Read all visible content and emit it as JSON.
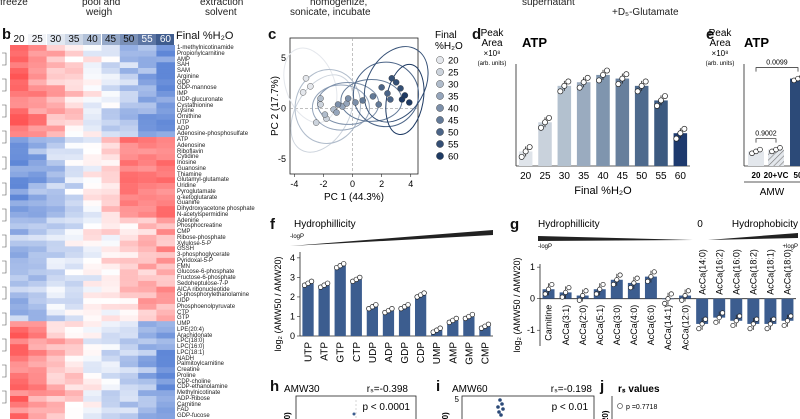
{
  "header_fragments": {
    "freeze": "freeze",
    "pool_weigh": "pool and",
    "weigh": "weigh",
    "extraction": "extraction",
    "solvent": "solvent",
    "homogenize": "homogenize,",
    "sonicate": "sonicate, incubate",
    "supernatant": "supernatant",
    "glutamate": "+D₅-Glutamate"
  },
  "panel_letters": {
    "b": "b",
    "c": "c",
    "d": "d",
    "e": "e",
    "f": "f",
    "g": "g",
    "h": "h",
    "i": "i",
    "j": "j"
  },
  "panel_b": {
    "col_labels": [
      "20",
      "25",
      "30",
      "35",
      "40",
      "45",
      "50",
      "55",
      "60"
    ],
    "final_label": "Final %H₂O",
    "row_labels": [
      "1-methylnicotinamide",
      "Propionylcarnitine",
      "AMP",
      "SAH",
      "SAM",
      "Arginine",
      "GDP",
      "GDP-mannose",
      "IMP",
      "UDP-glucuronate",
      "Cystathionine",
      "Lysine",
      "Ornithine",
      "UTP",
      "ADP",
      "Adenosine-phosphosulfate",
      "ATP",
      "Adenosine",
      "Riboflavin",
      "Cytidine",
      "Inosine",
      "Guanosine",
      "Thiamine",
      "Glutamyl-glutamate",
      "Uridine",
      "Pyroglutamate",
      "α-ketoglutarate",
      "Guanine",
      "Dihydroxyacetone phosphate",
      "N-acetylspermidine",
      "Adenine",
      "Phosphocreatine",
      "CMP",
      "Ribose-phosphate",
      "Xylulose-5-P",
      "GSSH",
      "3-phosphoglycerate",
      "Pyridoxal-5-P",
      "FMN",
      "Glucose-6-phosphate",
      "Fructose-6-phosphate",
      "Sedoheptulose-7-P",
      "AICA ribonucleotide",
      "O-phosphorylethanolamine",
      "UDP",
      "Phosphoenolpyruvate",
      "CTP",
      "GTP",
      "UMP",
      "LPE(20:4)",
      "Arachidonate",
      "LPC(18:0)",
      "LPC(16:0)",
      "LPC(18:1)",
      "NADH",
      "Palmitoylcarnitine",
      "Creatine",
      "Proline",
      "CDP-choline",
      "CDP-ethanolamine",
      "Methylnicotinate",
      "ADP-Ribose",
      "Carnitine",
      "FAD",
      "GDP-fucose"
    ]
  },
  "panel_c": {
    "xlabel": "PC 1 (44.3%)",
    "ylabel": "PC 2 (17.7%)",
    "xticks": [
      "-4",
      "-2",
      "0",
      "2",
      "4"
    ],
    "yticks": [
      "5",
      "0",
      "-5"
    ],
    "legend_title_1": "Final",
    "legend_title_2": "%H₂O",
    "legend": [
      "20",
      "25",
      "30",
      "35",
      "40",
      "45",
      "50",
      "55",
      "60"
    ],
    "points": [
      [
        -3.2,
        3.0,
        0
      ],
      [
        -3.4,
        1.6,
        0
      ],
      [
        -2.9,
        2.2,
        0
      ],
      [
        -2.5,
        -1.4,
        1
      ],
      [
        -2.2,
        0.4,
        1
      ],
      [
        -1.8,
        -1.0,
        1
      ],
      [
        -2.2,
        1.0,
        2
      ],
      [
        -1.9,
        -0.6,
        2
      ],
      [
        -1.3,
        -0.1,
        2
      ],
      [
        -1.1,
        -0.4,
        3
      ],
      [
        -0.7,
        0.2,
        3
      ],
      [
        -0.4,
        0.5,
        3
      ],
      [
        -1.0,
        0.4,
        4
      ],
      [
        -0.3,
        1.0,
        4
      ],
      [
        0.2,
        0.6,
        4
      ],
      [
        0.7,
        0.8,
        5
      ],
      [
        1.4,
        1.2,
        5
      ],
      [
        1.8,
        0.4,
        5
      ],
      [
        2.0,
        2.1,
        6
      ],
      [
        2.4,
        1.5,
        6
      ],
      [
        2.6,
        0.9,
        6
      ],
      [
        2.7,
        3.0,
        7
      ],
      [
        3.0,
        2.6,
        7
      ],
      [
        3.3,
        2.0,
        7
      ],
      [
        3.4,
        0.9,
        8
      ],
      [
        3.6,
        1.3,
        8
      ],
      [
        3.9,
        0.6,
        8
      ]
    ]
  },
  "panel_d": {
    "title": "ATP",
    "ylabel_1": "Peak",
    "ylabel_2": "Area",
    "ylabel_3": "×10⁸",
    "ylabel_4": "(arb. units)",
    "xlabel": "Final %H₂O",
    "categories": [
      "20",
      "25",
      "30",
      "35",
      "40",
      "45",
      "50",
      "55",
      "60"
    ],
    "values": [
      0.4,
      1.2,
      2.2,
      2.3,
      2.5,
      2.4,
      2.2,
      1.8,
      0.9
    ],
    "colors": [
      "#dfe4ea",
      "#c9d2dc",
      "#b3c1cf",
      "#9aabbf",
      "#7f95ae",
      "#677f9c",
      "#4e6a8d",
      "#3c5a80",
      "#1e3a6e"
    ]
  },
  "panel_e": {
    "title": "ATP",
    "ylabel_1": "Peak",
    "ylabel_2": "Area",
    "ylabel_3": "×10⁸",
    "ylabel_4": "(arb. units)",
    "p_top": "0.0099",
    "p_bottom": "0.9002",
    "categories": [
      "20",
      "20+VC",
      "50"
    ],
    "values": [
      0.4,
      0.45,
      2.4
    ],
    "xlabel": "AMW"
  },
  "panel_f": {
    "title": "Hydrophillicity",
    "logp": "-logP",
    "ylabel": "log₂ (AMW50 / AMW20)",
    "yticks": [
      "4",
      "3",
      "2",
      "1",
      "0"
    ],
    "categories": [
      "UTP",
      "ATP",
      "GTP",
      "CTP",
      "UDP",
      "ADP",
      "GDP",
      "CDP",
      "UMP",
      "AMP",
      "GMP",
      "CMP"
    ],
    "values": [
      2.7,
      2.6,
      3.6,
      2.9,
      1.5,
      1.3,
      1.5,
      2.1,
      0.3,
      0.8,
      1.0,
      0.5
    ]
  },
  "panel_g": {
    "title_left": "Hydrophillicity",
    "title_right": "Hydrophobicity",
    "zero": "0",
    "logp_left": "-logP",
    "logp_right": "+logP",
    "ylabel": "log₂ (AMW50 / AMW20)",
    "yticks": [
      "1",
      "0",
      "-1"
    ],
    "categories": [
      "Carnitine",
      "AcCa(3:1)",
      "AcCa(2:0)",
      "AcCa(5:1)",
      "AcCa(3:0)",
      "AcCa(4:0)",
      "AcCa(6:0)",
      "AcCa(14:1)",
      "AcCa(12:0)",
      "AcCa(14:0)",
      "AcCa(16:2)",
      "AcCa(16:0)",
      "AcCa(18:2)",
      "AcCa(18:1)",
      "AcCa(18:0)"
    ],
    "values": [
      0.3,
      0.2,
      0.1,
      0.3,
      0.6,
      0.5,
      0.7,
      0.0,
      0.1,
      -0.8,
      -0.6,
      -0.7,
      -0.8,
      -0.8,
      -0.7
    ]
  },
  "panel_h": {
    "title": "AMW30",
    "rs": "rₛ=-0.398",
    "p": "p < 0.0001",
    "ylabel": "20)"
  },
  "panel_i": {
    "title": "AMW60",
    "rs": "rₛ=-0.198",
    "p": "p < 0.01",
    "ytick": "5",
    "ylabel": "20)"
  },
  "panel_j": {
    "title": "rₛ values",
    "p": "p =0.7718",
    "ylabel": "W20)"
  }
}
